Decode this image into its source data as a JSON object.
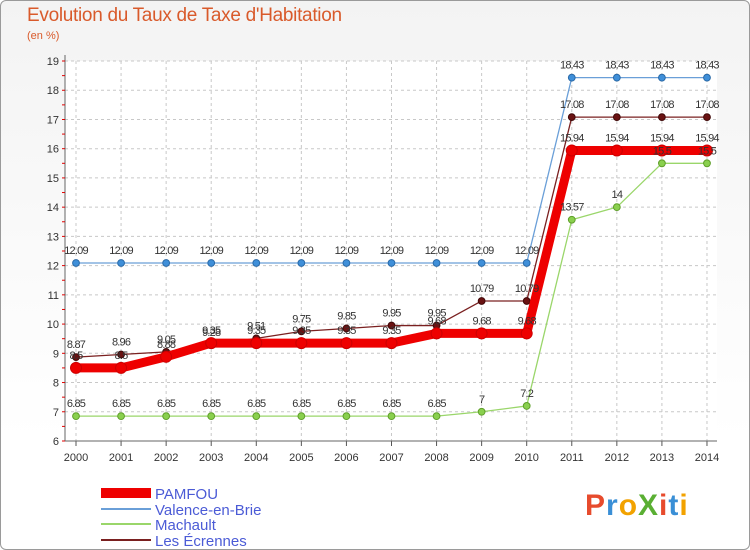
{
  "chart_data": {
    "type": "line",
    "title": "Evolution du Taux de Taxe d'Habitation",
    "ylabel": "(en %)",
    "xlabel": "",
    "ylim": [
      6,
      19
    ],
    "yticks": [
      "6",
      "7",
      "8",
      "9",
      "10",
      "11",
      "12",
      "13",
      "14",
      "15",
      "16",
      "17",
      "18",
      "19"
    ],
    "categories": [
      "2000",
      "2001",
      "2002",
      "2003",
      "2004",
      "2005",
      "2006",
      "2007",
      "2008",
      "2009",
      "2010",
      "2011",
      "2012",
      "2013",
      "2014"
    ],
    "grid": true,
    "legend_position": "bottom-left",
    "series": [
      {
        "name": "PAMFOU",
        "color": "#ee0000",
        "values": [
          8.5,
          8.5,
          8.88,
          9.35,
          9.35,
          9.35,
          9.35,
          9.35,
          9.68,
          9.68,
          9.68,
          15.94,
          15.94,
          15.94,
          15.94
        ],
        "labels": [
          "8.5",
          "8.5",
          "8.88",
          "9.35",
          "9.35",
          "9.35",
          "9.35",
          "9.35",
          "9.68",
          "9.68",
          "9.68",
          "15.94",
          "15.94",
          "15.94",
          "15.94"
        ]
      },
      {
        "name": "Valence-en-Brie",
        "color": "#6a9fd8",
        "values": [
          12.09,
          12.09,
          12.09,
          12.09,
          12.09,
          12.09,
          12.09,
          12.09,
          12.09,
          12.09,
          12.09,
          18.43,
          18.43,
          18.43,
          18.43
        ],
        "labels": [
          "12.09",
          "12.09",
          "12.09",
          "12.09",
          "12.09",
          "12.09",
          "12.09",
          "12.09",
          "12.09",
          "12.09",
          "12.09",
          "18.43",
          "18.43",
          "18.43",
          "18.43"
        ]
      },
      {
        "name": "Machault",
        "color": "#9ad66a",
        "values": [
          6.85,
          6.85,
          6.85,
          6.85,
          6.85,
          6.85,
          6.85,
          6.85,
          6.85,
          7,
          7.2,
          13.57,
          14,
          15.5,
          15.5
        ],
        "labels": [
          "6.85",
          "6.85",
          "6.85",
          "6.85",
          "6.85",
          "6.85",
          "6.85",
          "6.85",
          "6.85",
          "7",
          "7.2",
          "13.57",
          "14",
          "15.5",
          "15.5"
        ]
      },
      {
        "name": "Les Écrennes",
        "color": "#7a2020",
        "values": [
          8.87,
          8.96,
          9.05,
          9.28,
          9.51,
          9.75,
          9.85,
          9.95,
          9.95,
          10.79,
          10.79,
          17.08,
          17.08,
          17.08,
          17.08
        ],
        "labels": [
          "8.87",
          "8.96",
          "9.05",
          "9.28",
          "9.51",
          "9.75",
          "9.85",
          "9.95",
          "9.95",
          "10.79",
          "10.79",
          "17.08",
          "17.08",
          "17.08",
          "17.08"
        ]
      }
    ]
  },
  "logo": {
    "text": "ProXiti"
  }
}
